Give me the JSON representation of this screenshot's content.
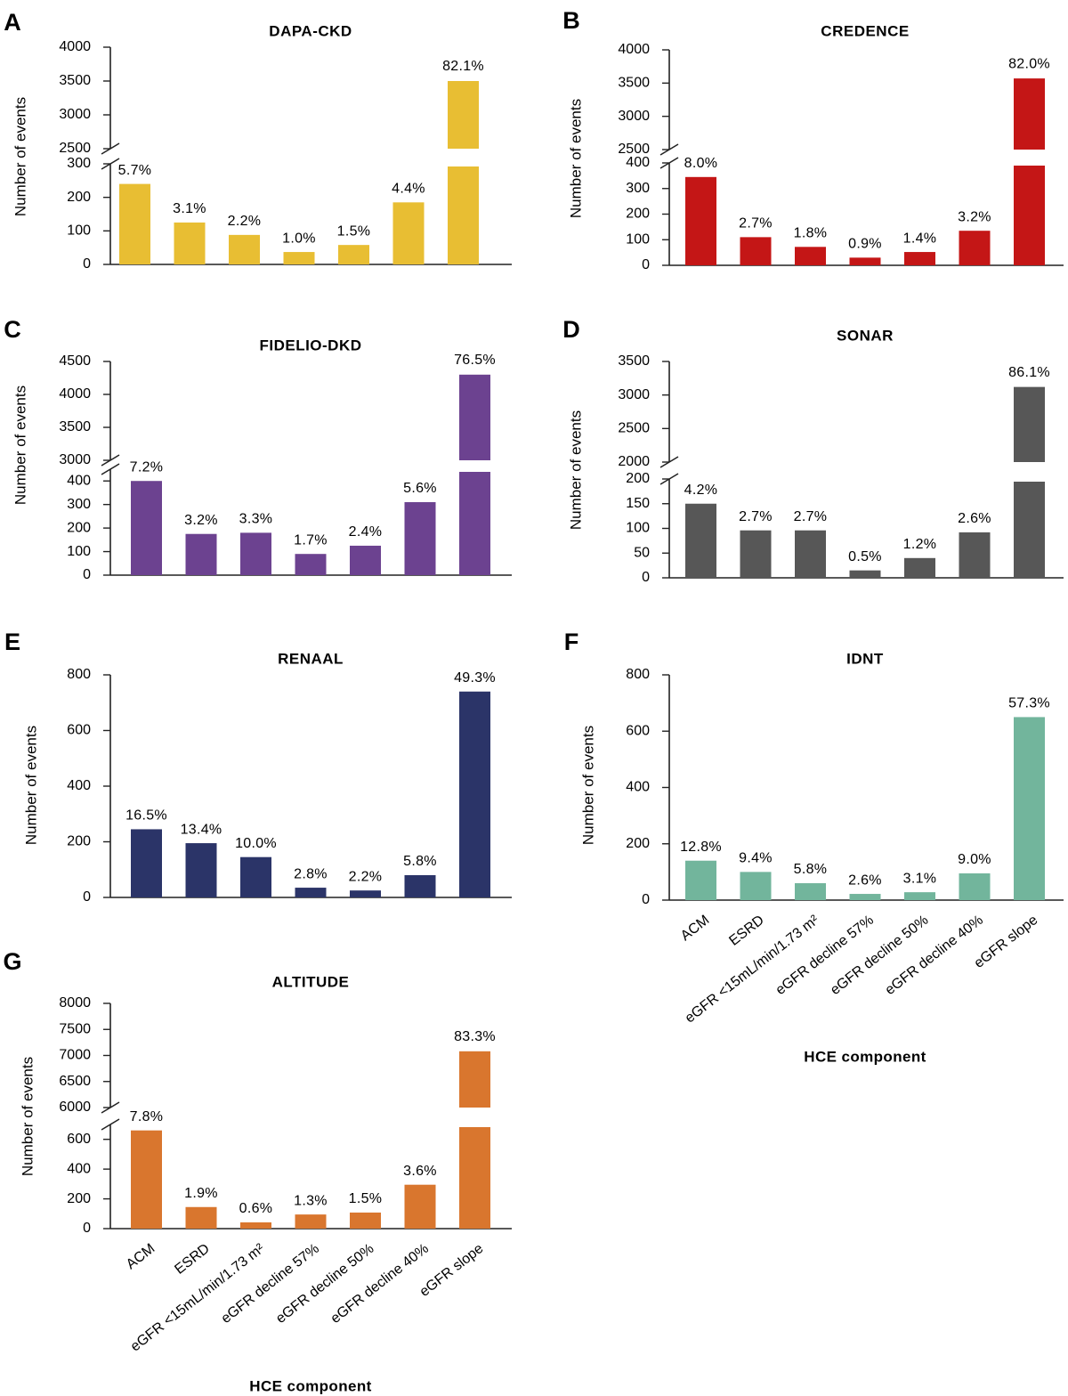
{
  "figure": {
    "categories": [
      "ACM",
      "ESRD",
      "eGFR <15mL/min/1.73 m²",
      "eGFR decline 57%",
      "eGFR decline 50%",
      "eGFR decline 40%",
      "eGFR slope"
    ],
    "xlabel": "HCE component",
    "ylabel": "Number of events"
  },
  "chart_data": [
    {
      "letter": "A",
      "title": "DAPA-CKD",
      "type": "bar",
      "color": "#E8BE33",
      "values": [
        240,
        125,
        88,
        37,
        58,
        185,
        3500
      ],
      "labels": [
        "5.7%",
        "3.1%",
        "2.2%",
        "1.0%",
        "1.5%",
        "4.4%",
        "82.1%"
      ],
      "lower_ticks": [
        0,
        100,
        200,
        300
      ],
      "upper_ticks": [
        2500,
        3000,
        3500,
        4000
      ],
      "lower_range": [
        0,
        300
      ],
      "upper_range": [
        2500,
        4000
      ]
    },
    {
      "letter": "B",
      "title": "CREDENCE",
      "type": "bar",
      "color": "#C41616",
      "values": [
        345,
        110,
        72,
        30,
        52,
        135,
        3570
      ],
      "labels": [
        "8.0%",
        "2.7%",
        "1.8%",
        "0.9%",
        "1.4%",
        "3.2%",
        "82.0%"
      ],
      "lower_ticks": [
        0,
        100,
        200,
        300,
        400
      ],
      "upper_ticks": [
        2500,
        3000,
        3500,
        4000
      ],
      "lower_range": [
        0,
        400
      ],
      "upper_range": [
        2500,
        4000
      ]
    },
    {
      "letter": "C",
      "title": "FIDELIO-DKD",
      "type": "bar",
      "color": "#6C4290",
      "values": [
        400,
        175,
        180,
        90,
        125,
        310,
        4300
      ],
      "labels": [
        "7.2%",
        "3.2%",
        "3.3%",
        "1.7%",
        "2.4%",
        "5.6%",
        "76.5%"
      ],
      "lower_ticks": [
        0,
        100,
        200,
        300,
        400
      ],
      "upper_ticks": [
        3000,
        3500,
        4000,
        4500
      ],
      "lower_range": [
        0,
        450
      ],
      "upper_range": [
        3000,
        4500
      ]
    },
    {
      "letter": "D",
      "title": "SONAR",
      "type": "bar",
      "color": "#575757",
      "values": [
        150,
        96,
        96,
        15,
        40,
        92,
        3120
      ],
      "labels": [
        "4.2%",
        "2.7%",
        "2.7%",
        "0.5%",
        "1.2%",
        "2.6%",
        "86.1%"
      ],
      "lower_ticks": [
        0,
        50,
        100,
        150,
        200
      ],
      "upper_ticks": [
        2000,
        2500,
        3000,
        3500
      ],
      "lower_range": [
        0,
        200
      ],
      "upper_range": [
        2000,
        3500
      ]
    },
    {
      "letter": "E",
      "title": "RENAAL",
      "type": "bar",
      "color": "#2B3468",
      "values": [
        245,
        195,
        145,
        35,
        25,
        80,
        740
      ],
      "labels": [
        "16.5%",
        "13.4%",
        "10.0%",
        "2.8%",
        "2.2%",
        "5.8%",
        "49.3%"
      ],
      "ticks": [
        0,
        200,
        400,
        600,
        800
      ],
      "ylim": [
        0,
        800
      ]
    },
    {
      "letter": "F",
      "title": "IDNT",
      "type": "bar",
      "color": "#72B59C",
      "values": [
        140,
        100,
        60,
        22,
        28,
        95,
        650
      ],
      "labels": [
        "12.8%",
        "9.4%",
        "5.8%",
        "2.6%",
        "3.1%",
        "9.0%",
        "57.3%"
      ],
      "ticks": [
        0,
        200,
        400,
        600,
        800
      ],
      "ylim": [
        0,
        800
      ]
    },
    {
      "letter": "G",
      "title": "ALTITUDE",
      "type": "bar",
      "color": "#D9762E",
      "values": [
        660,
        145,
        42,
        95,
        108,
        295,
        7080
      ],
      "labels": [
        "7.8%",
        "1.9%",
        "0.6%",
        "1.3%",
        "1.5%",
        "3.6%",
        "83.3%"
      ],
      "lower_ticks": [
        0,
        200,
        400,
        600
      ],
      "upper_ticks": [
        6000,
        6500,
        7000,
        7500,
        8000
      ],
      "lower_range": [
        0,
        700
      ],
      "upper_range": [
        6000,
        8000
      ]
    }
  ]
}
